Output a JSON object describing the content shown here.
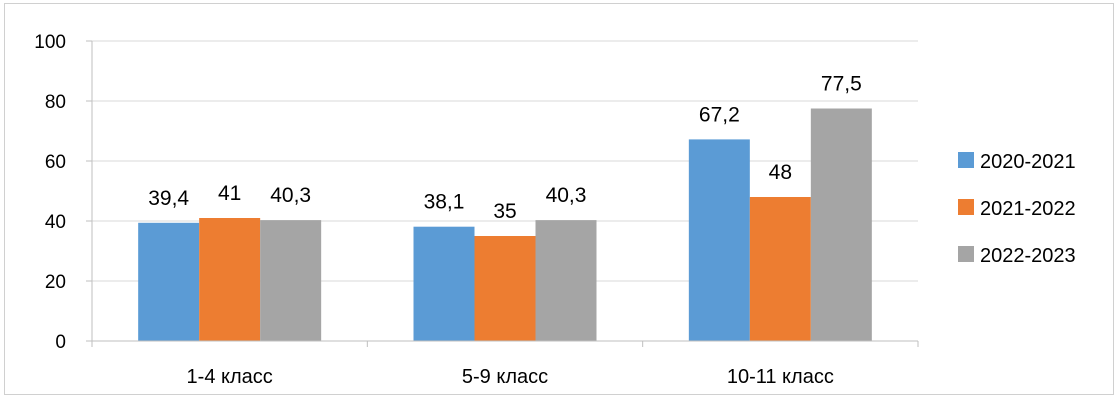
{
  "chart_data": {
    "type": "bar",
    "categories": [
      "1-4 класс",
      "5-9 класс",
      "10-11 класс"
    ],
    "series": [
      {
        "name": "2020-2021",
        "color": "#5b9bd5",
        "values": [
          39.4,
          38.1,
          67.2
        ],
        "labels": [
          "39,4",
          "38,1",
          "67,2"
        ]
      },
      {
        "name": "2021-2022",
        "color": "#ed7d31",
        "values": [
          41,
          35,
          48
        ],
        "labels": [
          "41",
          "35",
          "48"
        ]
      },
      {
        "name": "2022-2023",
        "color": "#a5a5a5",
        "values": [
          40.3,
          40.3,
          77.5
        ],
        "labels": [
          "40,3",
          "40,3",
          "77,5"
        ]
      }
    ],
    "ylim": [
      0,
      100
    ],
    "yticks": [
      0,
      20,
      40,
      60,
      80,
      100
    ],
    "grid": true,
    "legend": "right"
  }
}
